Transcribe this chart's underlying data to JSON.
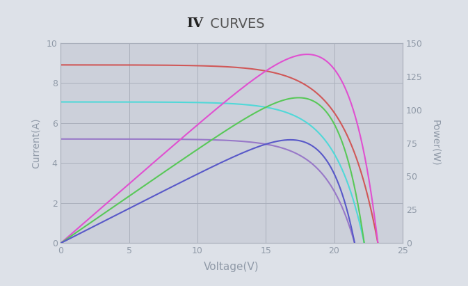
{
  "title_bold": "IV",
  "title_normal": " CURVES",
  "xlabel": "Voltage(V)",
  "ylabel_left": "Current(A)",
  "ylabel_right": "Power(W)",
  "xlim": [
    0,
    25
  ],
  "ylim_left": [
    0,
    10.0
  ],
  "ylim_right": [
    0,
    150
  ],
  "yticks_left": [
    0,
    2.0,
    4.0,
    6.0,
    8.0,
    10.0
  ],
  "yticks_right": [
    0,
    25,
    50,
    75,
    100,
    125,
    150
  ],
  "xticks": [
    0,
    5,
    10,
    15,
    20,
    25
  ],
  "background_color": "#dde1e8",
  "plot_bg_color": "#ccd0da",
  "grid_color": "#aab0bc",
  "iv_curves": [
    {
      "isc": 8.9,
      "voc": 23.2,
      "imp": 8.15,
      "vmp": 17.2,
      "color": "#d05858"
    },
    {
      "isc": 7.05,
      "voc": 22.2,
      "imp": 6.45,
      "vmp": 16.8,
      "color": "#50d8d8"
    },
    {
      "isc": 5.2,
      "voc": 21.5,
      "imp": 4.75,
      "vmp": 16.2,
      "color": "#9878c8"
    }
  ],
  "power_curve_colors": [
    "#e050d0",
    "#58c858",
    "#5858c8"
  ],
  "font_color": "#909aa8",
  "title_color": "#555555",
  "title_bold_color": "#222222"
}
